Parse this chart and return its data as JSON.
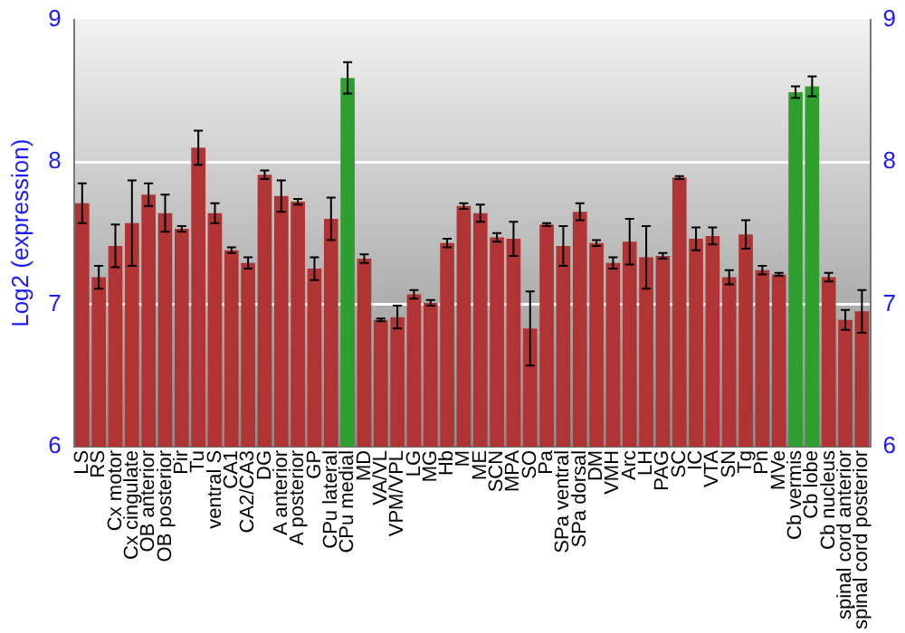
{
  "chart_data": {
    "type": "bar",
    "ylabel": "Log2 (expression)",
    "categories": [
      "LS",
      "RS",
      "Cx motor",
      "Cx cingulate",
      "OB anterior",
      "OB posterior",
      "Pir",
      "Tu",
      "ventral S",
      "CA1",
      "CA2/CA3",
      "DG",
      "A anterior",
      "A posterior",
      "GP",
      "CPu lateral",
      "CPu medial",
      "MD",
      "VA/VL",
      "VPM/VPL",
      "LG",
      "MG",
      "Hb",
      "M",
      "ME",
      "SCN",
      "MPA",
      "SO",
      "Pa",
      "SPa ventral",
      "SPa dorsal",
      "DM",
      "VMH",
      "Arc",
      "LH",
      "PAG",
      "SC",
      "IC",
      "VTA",
      "SN",
      "Tg",
      "Pn",
      "MVe",
      "Cb vermis",
      "Cb lobe",
      "Cb nucleus",
      "spinal cord anterior",
      "spinal cord posterior"
    ],
    "values": [
      7.71,
      7.19,
      7.41,
      7.57,
      7.77,
      7.64,
      7.53,
      8.1,
      7.64,
      7.38,
      7.29,
      7.91,
      7.76,
      7.72,
      7.25,
      7.6,
      8.59,
      7.32,
      6.89,
      6.91,
      7.07,
      7.01,
      7.43,
      7.69,
      7.64,
      7.47,
      7.46,
      6.83,
      7.56,
      7.41,
      7.65,
      7.43,
      7.29,
      7.44,
      7.33,
      7.34,
      7.89,
      7.46,
      7.48,
      7.19,
      7.49,
      7.24,
      7.21,
      8.49,
      8.53,
      7.19,
      6.89,
      6.95
    ],
    "errors": [
      0.14,
      0.08,
      0.15,
      0.3,
      0.08,
      0.13,
      0.02,
      0.12,
      0.07,
      0.02,
      0.04,
      0.03,
      0.11,
      0.02,
      0.08,
      0.15,
      0.11,
      0.03,
      0.01,
      0.08,
      0.03,
      0.02,
      0.03,
      0.02,
      0.06,
      0.03,
      0.12,
      0.26,
      0.01,
      0.14,
      0.06,
      0.02,
      0.04,
      0.16,
      0.22,
      0.02,
      0.01,
      0.08,
      0.06,
      0.05,
      0.1,
      0.03,
      0.01,
      0.04,
      0.07,
      0.03,
      0.07,
      0.15
    ],
    "colors": [
      "#b03434",
      "#b03434",
      "#b03434",
      "#b03434",
      "#b03434",
      "#b03434",
      "#b03434",
      "#b03434",
      "#b03434",
      "#b03434",
      "#b03434",
      "#b03434",
      "#b03434",
      "#b03434",
      "#b03434",
      "#b03434",
      "#2e9e2e",
      "#b03434",
      "#b03434",
      "#b03434",
      "#b03434",
      "#b03434",
      "#b03434",
      "#b03434",
      "#b03434",
      "#b03434",
      "#b03434",
      "#b03434",
      "#b03434",
      "#b03434",
      "#b03434",
      "#b03434",
      "#b03434",
      "#b03434",
      "#b03434",
      "#b03434",
      "#b03434",
      "#b03434",
      "#b03434",
      "#b03434",
      "#b03434",
      "#b03434",
      "#b03434",
      "#2e9e2e",
      "#2e9e2e",
      "#b03434",
      "#b03434",
      "#b03434"
    ],
    "ylim": [
      6,
      9
    ],
    "yticks": [
      6,
      7,
      8,
      9
    ],
    "y2lim": [
      6,
      9
    ],
    "y2ticks": [
      6,
      7,
      8,
      9
    ],
    "grid": "y",
    "legend": false
  }
}
